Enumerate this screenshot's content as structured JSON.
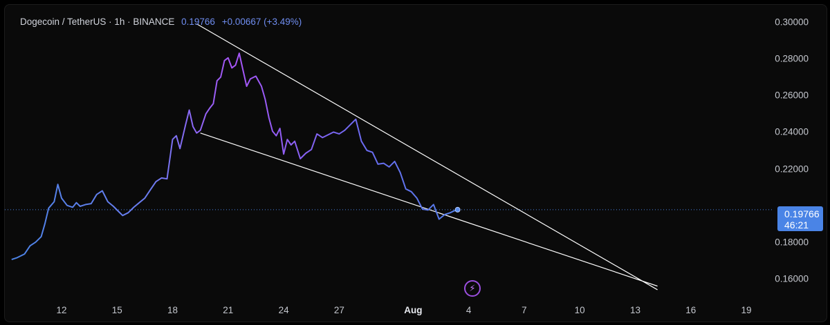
{
  "header": {
    "symbol": "Dogecoin / TetherUS · 1h · BINANCE",
    "last_price": "0.19766",
    "change": "+0.00667 (+3.49%)"
  },
  "price_tag": {
    "price": "0.19766",
    "countdown": "46:21"
  },
  "icons": {
    "bolt": "lightning-bolt-icon"
  },
  "colors": {
    "line_start": "#4a84e6",
    "line_peak": "#a855f7",
    "price_tag": "#4a84e6",
    "trendline": "#ffffff"
  },
  "chart_data": {
    "type": "line",
    "title": "Dogecoin / TetherUS · 1h · BINANCE",
    "ylim": [
      0.153,
      0.302
    ],
    "y_ticks": [
      "0.30000",
      "0.28000",
      "0.26000",
      "0.24000",
      "0.22000",
      "0.18000",
      "0.16000"
    ],
    "x_ticks": [
      "12",
      "15",
      "18",
      "21",
      "24",
      "27",
      "Aug",
      "4",
      "7",
      "10",
      "13",
      "16",
      "19"
    ],
    "x_tick_days": [
      12,
      15,
      18,
      21,
      24,
      27,
      31,
      34,
      37,
      40,
      43,
      46,
      49
    ],
    "x_range_days": [
      9.2,
      51.0
    ],
    "last_value": 0.19766,
    "series": [
      {
        "x_days": [
          9.3,
          9.6,
          10.0,
          10.3,
          10.6,
          10.9,
          11.1,
          11.3,
          11.6,
          11.8,
          12.0,
          12.3,
          12.6,
          12.8,
          13.0,
          13.3,
          13.6,
          13.9,
          14.2,
          14.5,
          14.8,
          15.1,
          15.3,
          15.6,
          15.9,
          16.2,
          16.5,
          16.8,
          17.1,
          17.4,
          17.7,
          18.0,
          18.2,
          18.4,
          18.7,
          18.9,
          19.1,
          19.3,
          19.5,
          19.8,
          20.0,
          20.2,
          20.4,
          20.6,
          20.8,
          21.0,
          21.2,
          21.4,
          21.6,
          21.8,
          22.0,
          22.2,
          22.5,
          22.8,
          23.0,
          23.2,
          23.4,
          23.6,
          23.8,
          24.0,
          24.2,
          24.4,
          24.6,
          24.9,
          25.2,
          25.5,
          25.8,
          26.1,
          26.4,
          26.7,
          27.0,
          27.3,
          27.6,
          27.9,
          28.2,
          28.5,
          28.8,
          29.1,
          29.4,
          29.7,
          30.0,
          30.3,
          30.6,
          30.9,
          31.2,
          31.5,
          31.8,
          32.1,
          32.4,
          32.7,
          33.0,
          33.2,
          33.4
        ],
        "values": [
          0.1705,
          0.1715,
          0.1735,
          0.178,
          0.18,
          0.183,
          0.19,
          0.1985,
          0.202,
          0.2115,
          0.204,
          0.2,
          0.199,
          0.2015,
          0.1995,
          0.2005,
          0.201,
          0.206,
          0.208,
          0.202,
          0.1995,
          0.1965,
          0.1945,
          0.196,
          0.199,
          0.2015,
          0.204,
          0.2085,
          0.213,
          0.215,
          0.2145,
          0.236,
          0.238,
          0.231,
          0.244,
          0.252,
          0.243,
          0.2395,
          0.241,
          0.25,
          0.253,
          0.2555,
          0.268,
          0.27,
          0.279,
          0.2805,
          0.275,
          0.2765,
          0.283,
          0.274,
          0.265,
          0.269,
          0.2705,
          0.265,
          0.258,
          0.248,
          0.2405,
          0.238,
          0.242,
          0.228,
          0.236,
          0.233,
          0.235,
          0.2255,
          0.2285,
          0.2305,
          0.239,
          0.237,
          0.2385,
          0.24,
          0.239,
          0.241,
          0.244,
          0.247,
          0.235,
          0.23,
          0.229,
          0.2225,
          0.223,
          0.221,
          0.224,
          0.218,
          0.209,
          0.2075,
          0.204,
          0.198,
          0.1975,
          0.2005,
          0.1925,
          0.195,
          0.196,
          0.197,
          0.19766
        ]
      }
    ],
    "trendlines": [
      {
        "from": [
          19.3,
          0.299
        ],
        "to": [
          44.2,
          0.154
        ]
      },
      {
        "from": [
          19.5,
          0.2395
        ],
        "to": [
          44.2,
          0.156
        ]
      }
    ],
    "grid": false,
    "legend": "none"
  }
}
